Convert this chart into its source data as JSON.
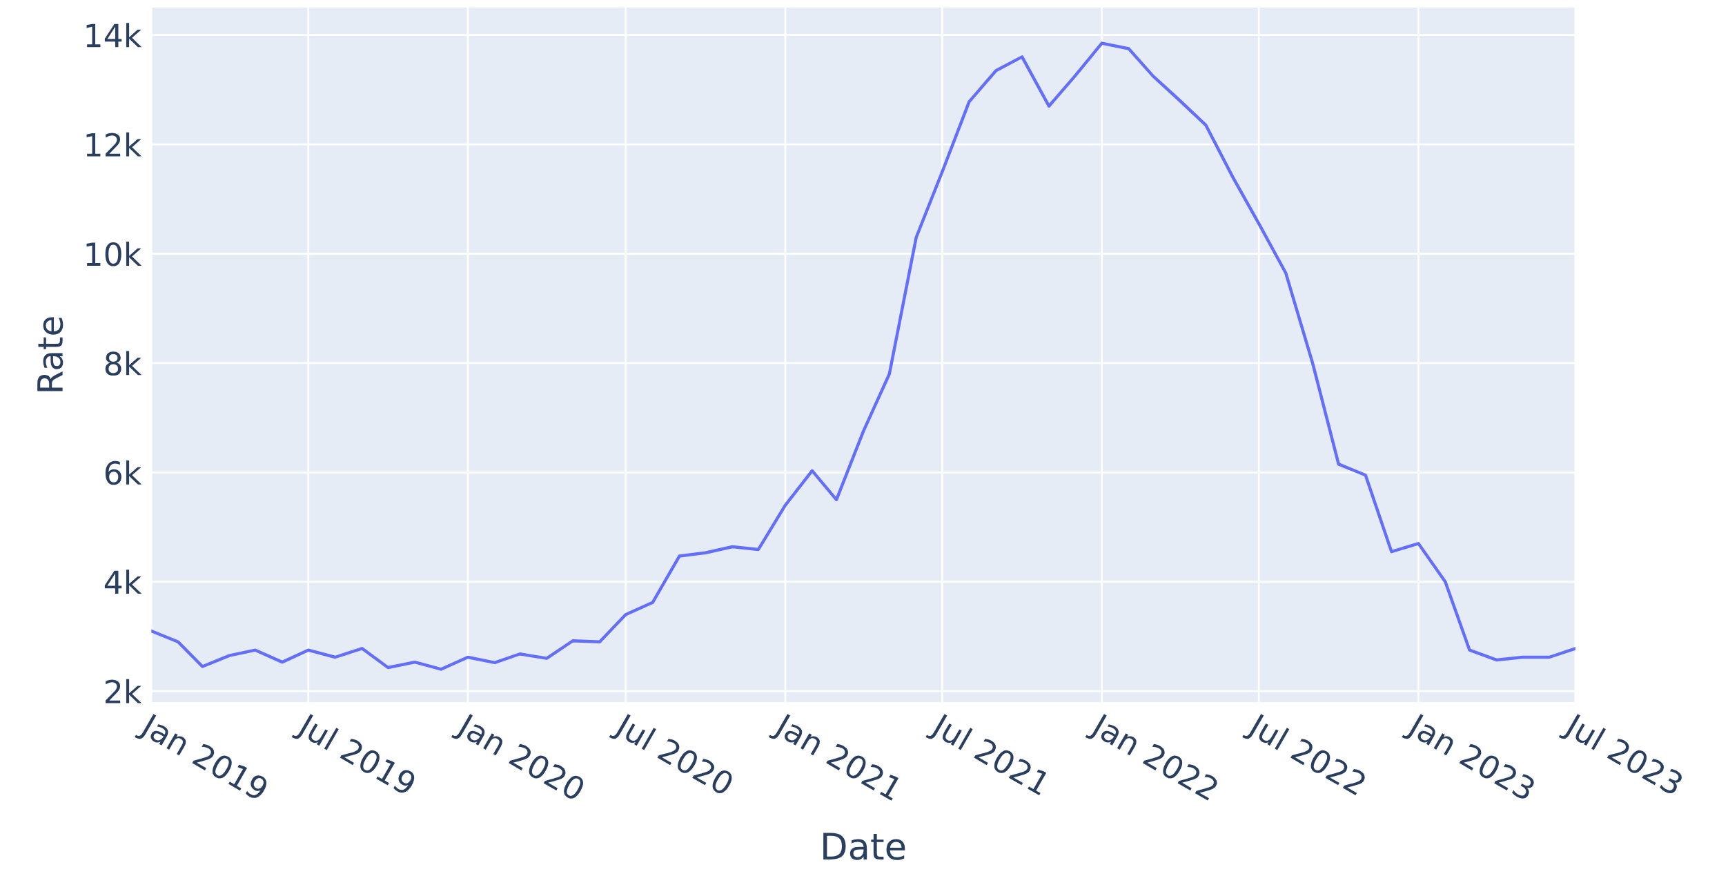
{
  "chart_data": {
    "type": "line",
    "xlabel": "Date",
    "ylabel": "Rate",
    "x": [
      "2019-01",
      "2019-02",
      "2019-03",
      "2019-04",
      "2019-05",
      "2019-06",
      "2019-07",
      "2019-08",
      "2019-09",
      "2019-10",
      "2019-11",
      "2019-12",
      "2020-01",
      "2020-02",
      "2020-03",
      "2020-04",
      "2020-05",
      "2020-06",
      "2020-07",
      "2020-08",
      "2020-09",
      "2020-10",
      "2020-11",
      "2020-12",
      "2021-01",
      "2021-02",
      "2021-03",
      "2021-04",
      "2021-05",
      "2021-06",
      "2021-07",
      "2021-08",
      "2021-09",
      "2021-10",
      "2021-11",
      "2021-12",
      "2022-01",
      "2022-02",
      "2022-03",
      "2022-04",
      "2022-05",
      "2022-06",
      "2022-07",
      "2022-08",
      "2022-09",
      "2022-10",
      "2022-11",
      "2022-12",
      "2023-01",
      "2023-02",
      "2023-03",
      "2023-04",
      "2023-05",
      "2023-06",
      "2023-07"
    ],
    "series": [
      {
        "color": "#636efa",
        "values": [
          3100,
          2900,
          2450,
          2650,
          2750,
          2530,
          2750,
          2620,
          2780,
          2430,
          2530,
          2400,
          2620,
          2520,
          2680,
          2600,
          2920,
          2900,
          3400,
          3620,
          4470,
          4530,
          4640,
          4590,
          5400,
          6030,
          5500,
          6750,
          7800,
          10300,
          11500,
          12780,
          13350,
          13600,
          12700,
          13250,
          13850,
          13750,
          13250,
          12800,
          12350,
          11400,
          10550,
          9650,
          8000,
          6150,
          5950,
          4550,
          4700,
          4000,
          2750,
          2570,
          2620,
          2620,
          2780
        ]
      }
    ],
    "xlim": [
      "2019-01",
      "2023-07"
    ],
    "xticks": [
      {
        "value": "2019-01",
        "label": "Jan 2019"
      },
      {
        "value": "2019-07",
        "label": "Jul 2019"
      },
      {
        "value": "2020-01",
        "label": "Jan 2020"
      },
      {
        "value": "2020-07",
        "label": "Jul 2020"
      },
      {
        "value": "2021-01",
        "label": "Jan 2021"
      },
      {
        "value": "2021-07",
        "label": "Jul 2021"
      },
      {
        "value": "2022-01",
        "label": "Jan 2022"
      },
      {
        "value": "2022-07",
        "label": "Jul 2022"
      },
      {
        "value": "2023-01",
        "label": "Jan 2023"
      },
      {
        "value": "2023-07",
        "label": "Jul 2023"
      }
    ],
    "ylim": [
      1800,
      14500
    ],
    "yticks": [
      {
        "value": 2000,
        "label": "2k"
      },
      {
        "value": 4000,
        "label": "4k"
      },
      {
        "value": 6000,
        "label": "6k"
      },
      {
        "value": 8000,
        "label": "8k"
      },
      {
        "value": 10000,
        "label": "10k"
      },
      {
        "value": 12000,
        "label": "12k"
      },
      {
        "value": 14000,
        "label": "14k"
      }
    ],
    "grid": true,
    "marker": "none",
    "line_style": "solid"
  }
}
